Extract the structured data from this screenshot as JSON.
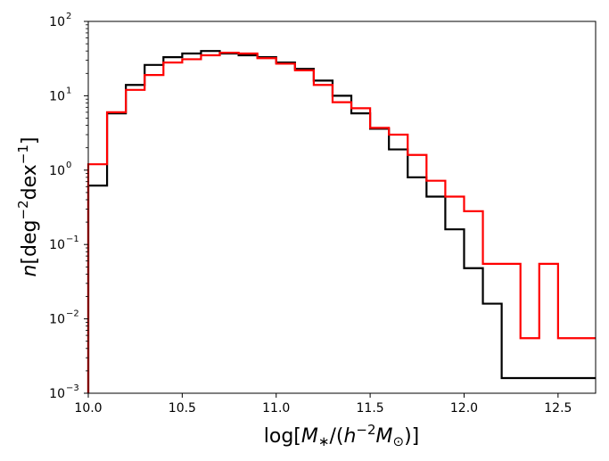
{
  "chart_data": {
    "type": "step",
    "title": "",
    "xlabel": "log[M_*/(h^{-2}M_⊙)]",
    "ylabel": "n[deg^{-2}dex^{-1}]",
    "xlim": [
      10.0,
      12.7
    ],
    "ylim": [
      0.001,
      100
    ],
    "yscale": "log",
    "grid": false,
    "x_ticks": [
      10.0,
      10.5,
      11.0,
      11.5,
      12.0,
      12.5
    ],
    "x_tick_labels": [
      "10.0",
      "10.5",
      "11.0",
      "11.5",
      "12.0",
      "12.5"
    ],
    "y_ticks": [
      0.001,
      0.01,
      0.1,
      1,
      10,
      100
    ],
    "y_tick_exponents": [
      "−3",
      "−2",
      "−1",
      "0",
      "1",
      "2"
    ],
    "bin_edges": [
      10.0,
      10.1,
      10.2,
      10.3,
      10.4,
      10.5,
      10.6,
      10.7,
      10.8,
      10.9,
      11.0,
      11.1,
      11.2,
      11.3,
      11.4,
      11.5,
      11.6,
      11.7,
      11.8,
      11.9,
      12.0,
      12.1,
      12.2,
      12.3,
      12.4,
      12.5,
      12.6,
      12.7
    ],
    "series": [
      {
        "color": "#000000",
        "values": [
          0.62,
          5.8,
          14.0,
          26.0,
          33.0,
          37.0,
          40.0,
          37.0,
          35.0,
          33.0,
          28.0,
          23.0,
          16.0,
          10.0,
          5.8,
          3.6,
          1.9,
          0.8,
          0.44,
          0.16,
          0.048,
          0.016,
          0.0016,
          0.0016,
          0.0016,
          0.0016,
          0.0016
        ]
      },
      {
        "color": "#ff0000",
        "values": [
          1.2,
          6.0,
          12.0,
          19.0,
          28.0,
          31.0,
          35.0,
          38.0,
          37.0,
          32.0,
          27.0,
          22.0,
          14.0,
          8.2,
          6.8,
          3.7,
          3.0,
          1.6,
          0.72,
          0.44,
          0.28,
          0.055,
          0.055,
          0.0055,
          0.055,
          0.0055,
          0.0055
        ]
      }
    ]
  }
}
